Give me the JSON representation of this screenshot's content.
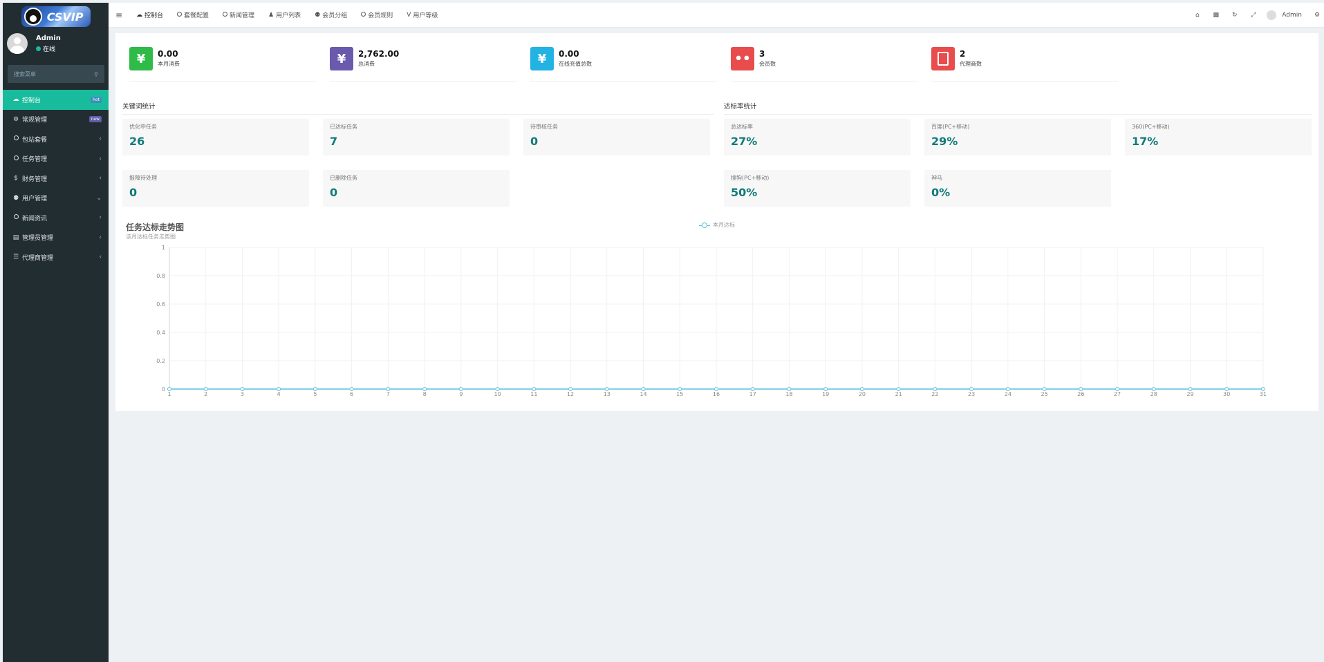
{
  "sidebar": {
    "logo_text": "CSVIP",
    "user": {
      "name": "Admin",
      "status": "在线"
    },
    "search_placeholder": "搜索菜单",
    "items": [
      {
        "label": "控制台",
        "icon": "dashboard-icon",
        "badge": "hot",
        "active": true
      },
      {
        "label": "常规管理",
        "icon": "cogs-icon",
        "badge": "new"
      },
      {
        "label": "包站套餐",
        "icon": "circle-icon",
        "arrow": "‹"
      },
      {
        "label": "任务管理",
        "icon": "circle-icon",
        "arrow": "‹"
      },
      {
        "label": "财务管理",
        "icon": "dollar-icon",
        "arrow": "‹"
      },
      {
        "label": "用户管理",
        "icon": "users-icon",
        "arrow": "⌄"
      },
      {
        "label": "新闻资讯",
        "icon": "circle-icon",
        "arrow": "‹"
      },
      {
        "label": "管理员管理",
        "icon": "id-card-icon",
        "arrow": "‹"
      },
      {
        "label": "代理商管理",
        "icon": "list-icon",
        "arrow": "‹"
      }
    ]
  },
  "topbar": {
    "tabs": [
      {
        "label": "控制台",
        "icon": "dashboard-icon"
      },
      {
        "label": "套餐配置",
        "icon": "circle-icon"
      },
      {
        "label": "新闻管理",
        "icon": "circle-icon"
      },
      {
        "label": "用户列表",
        "icon": "user-icon"
      },
      {
        "label": "会员分组",
        "icon": "users-icon"
      },
      {
        "label": "会员规则",
        "icon": "circle-icon"
      },
      {
        "label": "用户等级",
        "icon": "vimeo-icon"
      }
    ],
    "user_name": "Admin"
  },
  "stats": [
    {
      "value": "0.00",
      "label": "本月消费",
      "icon": "yen-icon",
      "color": "#2fbb48"
    },
    {
      "value": "2,762.00",
      "label": "总消费",
      "icon": "yen-icon",
      "color": "#6a5aad"
    },
    {
      "value": "0.00",
      "label": "在线充值总数",
      "icon": "yen-icon",
      "color": "#22b3e3"
    },
    {
      "value": "3",
      "label": "会员数",
      "icon": "users-icon",
      "color": "#e84c4c"
    },
    {
      "value": "2",
      "label": "代理商数",
      "icon": "address-book-icon",
      "color": "#e84c4c"
    }
  ],
  "keyword_section": {
    "title": "关键词统计",
    "metrics": [
      {
        "label": "优化中任务",
        "value": "26"
      },
      {
        "label": "已达标任务",
        "value": "7"
      },
      {
        "label": "待审核任务",
        "value": "0"
      },
      {
        "label": "报障待处理",
        "value": "0"
      },
      {
        "label": "已删除任务",
        "value": "0"
      }
    ]
  },
  "rate_section": {
    "title": "达标率统计",
    "metrics": [
      {
        "label": "总达标率",
        "value": "27%"
      },
      {
        "label": "百度(PC+移动)",
        "value": "29%"
      },
      {
        "label": "360(PC+移动)",
        "value": "17%"
      },
      {
        "label": "搜狗(PC+移动)",
        "value": "50%"
      },
      {
        "label": "神马",
        "value": "0%"
      }
    ]
  },
  "chart_data": {
    "type": "line",
    "title": "任务达标走势图",
    "subtitle": "该月达标任务走势图",
    "x": [
      1,
      2,
      3,
      4,
      5,
      6,
      7,
      8,
      9,
      10,
      11,
      12,
      13,
      14,
      15,
      16,
      17,
      18,
      19,
      20,
      21,
      22,
      23,
      24,
      25,
      26,
      27,
      28,
      29,
      30,
      31
    ],
    "y_ticks": [
      "0",
      "0.2",
      "0.4",
      "0.6",
      "0.8",
      "1"
    ],
    "ylim": [
      0,
      1
    ],
    "series": [
      {
        "name": "本月达标",
        "values": [
          0,
          0,
          0,
          0,
          0,
          0,
          0,
          0,
          0,
          0,
          0,
          0,
          0,
          0,
          0,
          0,
          0,
          0,
          0,
          0,
          0,
          0,
          0,
          0,
          0,
          0,
          0,
          0,
          0,
          0,
          0
        ],
        "color": "#5bc0de"
      }
    ],
    "grid": true,
    "legend": "top-center"
  }
}
